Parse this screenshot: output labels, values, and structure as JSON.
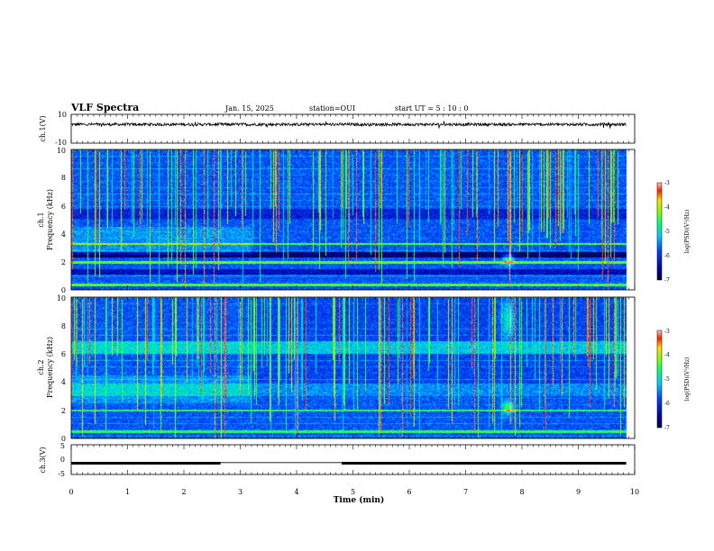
{
  "header": {
    "title": "VLF Spectra",
    "date": "Jan. 15, 2025",
    "station": "station=OUI",
    "start": "start UT =  5 : 10 : 0"
  },
  "chart_data": [
    {
      "name": "ch1-waveform",
      "type": "line",
      "ylabel": "ch.1(V)",
      "ylim": [
        -10,
        10
      ],
      "y_ticks": [
        "10",
        "-10"
      ],
      "baseline_value": 3,
      "noise_amplitude": 1
    },
    {
      "name": "ch1-spectrogram",
      "type": "heatmap",
      "ylabel": "ch.1\nFrequency (kHz)",
      "ylim": [
        0,
        10
      ],
      "y_ticks": [
        "0",
        "2",
        "4",
        "6",
        "8",
        "10"
      ],
      "colorbar": {
        "label": "log(PSD)(V²/Hz)",
        "range": [
          -7,
          -3
        ],
        "ticks": [
          "-3",
          "-4",
          "-5",
          "-6",
          "-7"
        ]
      },
      "features": {
        "band_kHz": [
          [
            0.3,
            0.5
          ],
          [
            1.2,
            1.4
          ],
          [
            1.9,
            2.1
          ],
          [
            2.4,
            2.7
          ]
        ],
        "blob": {
          "t_min": 7.75,
          "f_kHz": 2.2
        }
      }
    },
    {
      "name": "ch2-spectrogram",
      "type": "heatmap",
      "ylabel": "ch.2\nFrequency (kHz)",
      "ylim": [
        0,
        10
      ],
      "y_ticks": [
        "0",
        "2",
        "4",
        "6",
        "8",
        "10"
      ],
      "colorbar": {
        "label": "log(PSD)(V²/Hz)",
        "range": [
          -7,
          -3
        ],
        "ticks": [
          "-3",
          "-4",
          "-5",
          "-6",
          "-7"
        ]
      },
      "features": {
        "band_kHz": [
          [
            6.2,
            6.8
          ],
          [
            3.2,
            3.8
          ]
        ],
        "blob": {
          "t_min": 7.75,
          "f_kHz": 2.2
        }
      }
    },
    {
      "name": "ch3-trace",
      "type": "line",
      "ylabel": "ch.3(V)",
      "ylim": [
        -5,
        5
      ],
      "y_ticks": [
        "5",
        "0",
        "-5"
      ],
      "segments": [
        {
          "t_start": 0.0,
          "t_end": 2.65,
          "value": -1.2
        },
        {
          "t_start": 2.65,
          "t_end": 4.8,
          "value": -1.0
        },
        {
          "t_start": 4.8,
          "t_end": 9.85,
          "value": -1.2
        }
      ]
    }
  ],
  "x_axis": {
    "label": "Time (min)",
    "range": [
      0,
      10
    ],
    "ticks": [
      "0",
      "1",
      "2",
      "3",
      "4",
      "5",
      "6",
      "7",
      "8",
      "9",
      "10"
    ]
  }
}
